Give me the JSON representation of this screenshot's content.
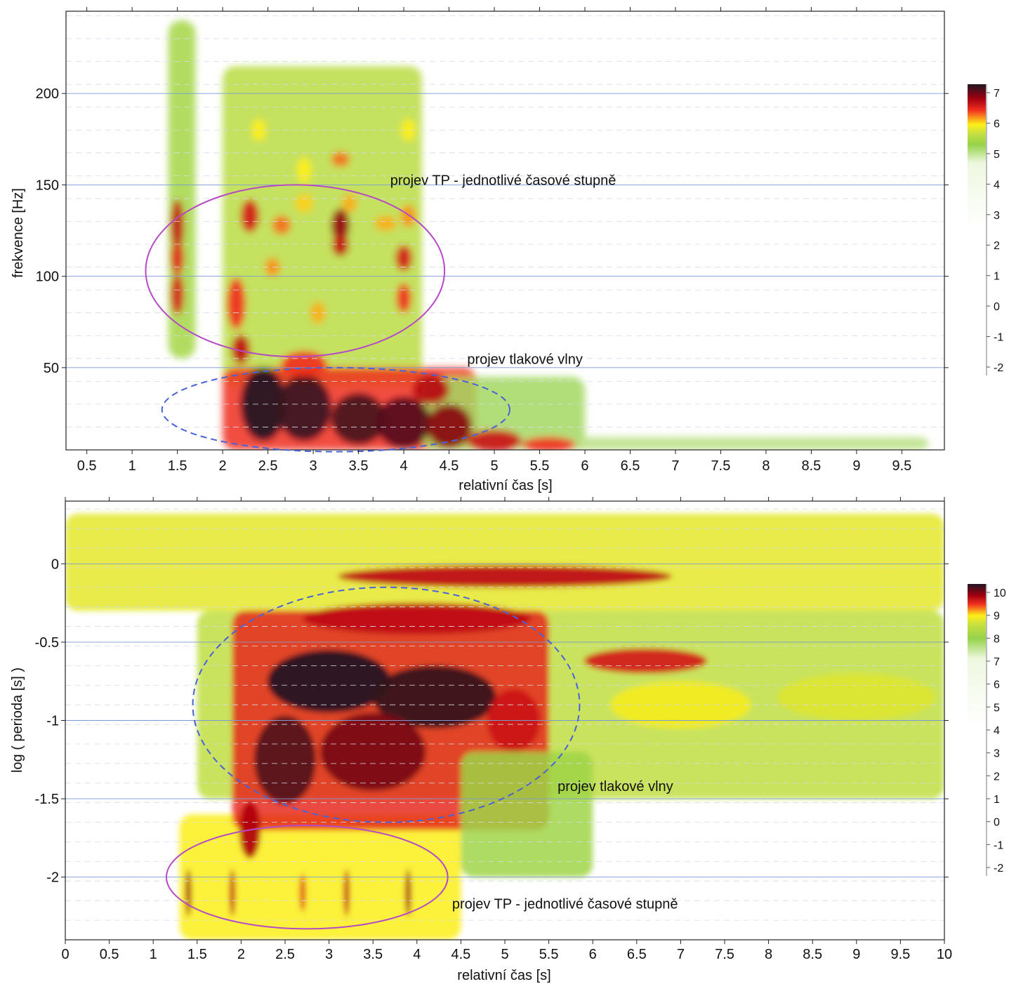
{
  "chart_data": [
    {
      "type": "heatmap",
      "xlabel": "relativní čas [s]",
      "ylabel": "frekvence [Hz]",
      "xlim": [
        0.27,
        9.97
      ],
      "ylim": [
        5,
        245
      ],
      "x_ticks": [
        0.5,
        1,
        1.5,
        2,
        2.5,
        3,
        3.5,
        4,
        4.5,
        5,
        5.5,
        6,
        6.5,
        7,
        7.5,
        8,
        8.5,
        9,
        9.5
      ],
      "x_tick_labels": [
        "0.5",
        "1",
        "1.5",
        "2",
        "2.5",
        "3",
        "3.5",
        "4",
        "4.5",
        "5",
        "5.5",
        "6",
        "6.5",
        "7",
        "7.5",
        "8",
        "8.5",
        "9",
        "9.5"
      ],
      "y_ticks": [
        50,
        100,
        150,
        200
      ],
      "y_tick_labels": [
        "50",
        "100",
        "150",
        "200"
      ],
      "grid": true,
      "colorbar": {
        "ticks": [
          7,
          6,
          5,
          4,
          3,
          2,
          1,
          0,
          -1,
          -2
        ],
        "tick_labels": [
          "7",
          "6",
          "5",
          "4",
          "3",
          "2",
          "1",
          "0",
          "-1",
          "-2"
        ],
        "range": [
          -2.3,
          7.4
        ]
      },
      "annotations": [
        {
          "text": "projev TP - jednotlivé časové stupně",
          "x": 3.85,
          "y": 150,
          "shape": "ellipse",
          "style": "solid-purple",
          "cx": 2.8,
          "cy": 103,
          "rx": 1.65,
          "ry": 47
        },
        {
          "text": "projev tlakové vlny",
          "x": 4.7,
          "y": 52,
          "shape": "ellipse",
          "style": "dashed-blue",
          "cx": 3.25,
          "cy": 27,
          "rx": 1.92,
          "ry": 23
        }
      ],
      "blobs": [
        {
          "x": 1.5,
          "y": 128,
          "v": 6.1,
          "sx": 0.07,
          "sy": 14
        },
        {
          "x": 1.5,
          "y": 110,
          "v": 5.8,
          "sx": 0.07,
          "sy": 9
        },
        {
          "x": 1.5,
          "y": 90,
          "v": 5.9,
          "sx": 0.07,
          "sy": 11
        },
        {
          "x": 2.15,
          "y": 85,
          "v": 5.6,
          "sx": 0.1,
          "sy": 14
        },
        {
          "x": 2.3,
          "y": 133,
          "v": 5.9,
          "sx": 0.1,
          "sy": 9
        },
        {
          "x": 2.55,
          "y": 105,
          "v": 5.3,
          "sx": 0.08,
          "sy": 5
        },
        {
          "x": 2.65,
          "y": 128,
          "v": 5.4,
          "sx": 0.1,
          "sy": 5
        },
        {
          "x": 3.05,
          "y": 80,
          "v": 5.2,
          "sx": 0.08,
          "sy": 6
        },
        {
          "x": 3.3,
          "y": 128,
          "v": 6.5,
          "sx": 0.1,
          "sy": 9
        },
        {
          "x": 3.3,
          "y": 117,
          "v": 6.1,
          "sx": 0.09,
          "sy": 6
        },
        {
          "x": 3.3,
          "y": 164,
          "v": 5.4,
          "sx": 0.1,
          "sy": 4
        },
        {
          "x": 3.4,
          "y": 140,
          "v": 5.2,
          "sx": 0.08,
          "sy": 5
        },
        {
          "x": 4.0,
          "y": 110,
          "v": 5.9,
          "sx": 0.09,
          "sy": 7
        },
        {
          "x": 4.0,
          "y": 88,
          "v": 5.6,
          "sx": 0.08,
          "sy": 8
        },
        {
          "x": 4.05,
          "y": 133,
          "v": 5.3,
          "sx": 0.08,
          "sy": 6
        },
        {
          "x": 3.8,
          "y": 129,
          "v": 5.2,
          "sx": 0.12,
          "sy": 4
        },
        {
          "x": 2.9,
          "y": 158,
          "v": 5.0,
          "sx": 0.08,
          "sy": 7
        },
        {
          "x": 2.9,
          "y": 140,
          "v": 5.1,
          "sx": 0.1,
          "sy": 5
        },
        {
          "x": 2.4,
          "y": 180,
          "v": 5.0,
          "sx": 0.08,
          "sy": 6
        },
        {
          "x": 4.05,
          "y": 180,
          "v": 5.0,
          "sx": 0.08,
          "sy": 6
        },
        {
          "x": 2.2,
          "y": 60,
          "v": 6.1,
          "sx": 0.1,
          "sy": 8
        },
        {
          "x": 2.45,
          "y": 30,
          "v": 7.4,
          "sx": 0.25,
          "sy": 20
        },
        {
          "x": 2.9,
          "y": 28,
          "v": 7.2,
          "sx": 0.3,
          "sy": 18
        },
        {
          "x": 3.5,
          "y": 22,
          "v": 7.1,
          "sx": 0.3,
          "sy": 14
        },
        {
          "x": 4.0,
          "y": 20,
          "v": 7.0,
          "sx": 0.3,
          "sy": 14
        },
        {
          "x": 4.5,
          "y": 18,
          "v": 6.6,
          "sx": 0.25,
          "sy": 12
        },
        {
          "x": 5.0,
          "y": 10,
          "v": 6.0,
          "sx": 0.3,
          "sy": 6
        },
        {
          "x": 5.6,
          "y": 8,
          "v": 5.6,
          "sx": 0.3,
          "sy": 4
        },
        {
          "x": 2.9,
          "y": 52,
          "v": 5.6,
          "sx": 0.25,
          "sy": 7
        },
        {
          "x": 4.3,
          "y": 38,
          "v": 6.2,
          "sx": 0.2,
          "sy": 8
        }
      ],
      "bands": [
        {
          "x0": 1.4,
          "x1": 1.7,
          "y0": 55,
          "y1": 240,
          "v": 4.0
        },
        {
          "x0": 2.0,
          "x1": 4.2,
          "y0": 40,
          "y1": 215,
          "v": 4.3
        },
        {
          "x0": 2.0,
          "x1": 4.8,
          "y0": 5,
          "y1": 50,
          "v": 5.6
        },
        {
          "x0": 4.2,
          "x1": 6.0,
          "y0": 5,
          "y1": 45,
          "v": 3.6
        },
        {
          "x0": 5.0,
          "x1": 9.8,
          "y0": 5,
          "y1": 12,
          "v": 3.3
        }
      ]
    },
    {
      "type": "heatmap",
      "xlabel": "relativní čas [s]",
      "ylabel": "log ( perioda [s] )",
      "xlim": [
        0,
        10
      ],
      "ylim": [
        -2.4,
        0.4
      ],
      "x_ticks": [
        0,
        0.5,
        1,
        1.5,
        2,
        2.5,
        3,
        3.5,
        4,
        4.5,
        5,
        5.5,
        6,
        6.5,
        7,
        7.5,
        8,
        8.5,
        9,
        9.5,
        10
      ],
      "x_tick_labels": [
        "0",
        "0.5",
        "1",
        "1.5",
        "2",
        "2.5",
        "3",
        "3.5",
        "4",
        "4.5",
        "5",
        "5.5",
        "6",
        "6.5",
        "7",
        "7.5",
        "8",
        "8.5",
        "9",
        "9.5",
        "10"
      ],
      "y_ticks": [
        0,
        -0.5,
        -1,
        -1.5,
        -2
      ],
      "y_tick_labels": [
        "0",
        "-0.5",
        "-1",
        "-1.5",
        "-2"
      ],
      "grid": true,
      "colorbar": {
        "ticks": [
          10,
          9,
          8,
          7,
          6,
          5,
          4,
          3,
          2,
          1,
          0,
          -1,
          -2
        ],
        "tick_labels": [
          "10",
          "9",
          "8",
          "7",
          "6",
          "5",
          "4",
          "3",
          "2",
          "1",
          "0",
          "-1",
          "-2"
        ],
        "range": [
          -2.3,
          10.9
        ]
      },
      "annotations": [
        {
          "text": "projev tlakové vlny",
          "x": 5.6,
          "y": -1.45,
          "shape": "ellipse",
          "style": "dashed-blue",
          "cx": 3.65,
          "cy": -0.9,
          "rx": 2.2,
          "ry": 0.75
        },
        {
          "text": "projev TP - jednotlivé časové stupně",
          "x": 4.4,
          "y": -2.2,
          "shape": "ellipse",
          "style": "solid-purple",
          "cx": 2.75,
          "cy": -2.0,
          "rx": 1.6,
          "ry": 0.33
        }
      ],
      "blobs": [
        {
          "x": 5.0,
          "y": -0.08,
          "v": 9.2,
          "sx": 1.9,
          "sy": 0.07
        },
        {
          "x": 4.0,
          "y": -0.35,
          "v": 9.2,
          "sx": 1.3,
          "sy": 0.1
        },
        {
          "x": 3.0,
          "y": -0.75,
          "v": 10.9,
          "sx": 0.7,
          "sy": 0.2
        },
        {
          "x": 4.2,
          "y": -0.85,
          "v": 10.7,
          "sx": 0.7,
          "sy": 0.2
        },
        {
          "x": 2.5,
          "y": -1.25,
          "v": 10.4,
          "sx": 0.35,
          "sy": 0.28
        },
        {
          "x": 3.5,
          "y": -1.2,
          "v": 10.0,
          "sx": 0.6,
          "sy": 0.25
        },
        {
          "x": 5.1,
          "y": -1.0,
          "v": 9.0,
          "sx": 0.3,
          "sy": 0.2
        },
        {
          "x": 6.6,
          "y": -0.62,
          "v": 8.9,
          "sx": 0.7,
          "sy": 0.08
        },
        {
          "x": 7.0,
          "y": -0.9,
          "v": 7.5,
          "sx": 0.8,
          "sy": 0.15
        },
        {
          "x": 9.0,
          "y": -0.85,
          "v": 7.2,
          "sx": 0.9,
          "sy": 0.15
        },
        {
          "x": 2.1,
          "y": -1.7,
          "v": 9.4,
          "sx": 0.12,
          "sy": 0.18
        },
        {
          "x": 1.4,
          "y": -2.1,
          "v": 9.6,
          "sx": 0.03,
          "sy": 0.15
        },
        {
          "x": 1.9,
          "y": -2.1,
          "v": 9.2,
          "sx": 0.03,
          "sy": 0.15
        },
        {
          "x": 3.2,
          "y": -2.1,
          "v": 9.2,
          "sx": 0.03,
          "sy": 0.15
        },
        {
          "x": 3.9,
          "y": -2.1,
          "v": 9.6,
          "sx": 0.03,
          "sy": 0.15
        },
        {
          "x": 2.7,
          "y": -2.1,
          "v": 8.8,
          "sx": 0.03,
          "sy": 0.12
        }
      ],
      "bands": [
        {
          "x0": 0,
          "x1": 10,
          "y0": -0.3,
          "y1": 0.32,
          "v": 7.3
        },
        {
          "x0": 1.5,
          "x1": 10,
          "y0": -1.5,
          "y1": -0.3,
          "v": 6.8
        },
        {
          "x0": 1.3,
          "x1": 4.5,
          "y0": -2.4,
          "y1": -1.6,
          "v": 7.6
        },
        {
          "x0": 1.9,
          "x1": 5.5,
          "y0": -1.7,
          "y1": -0.3,
          "v": 8.6
        },
        {
          "x0": 4.5,
          "x1": 6.0,
          "y0": -2.0,
          "y1": -1.2,
          "v": 6.2
        }
      ]
    }
  ]
}
